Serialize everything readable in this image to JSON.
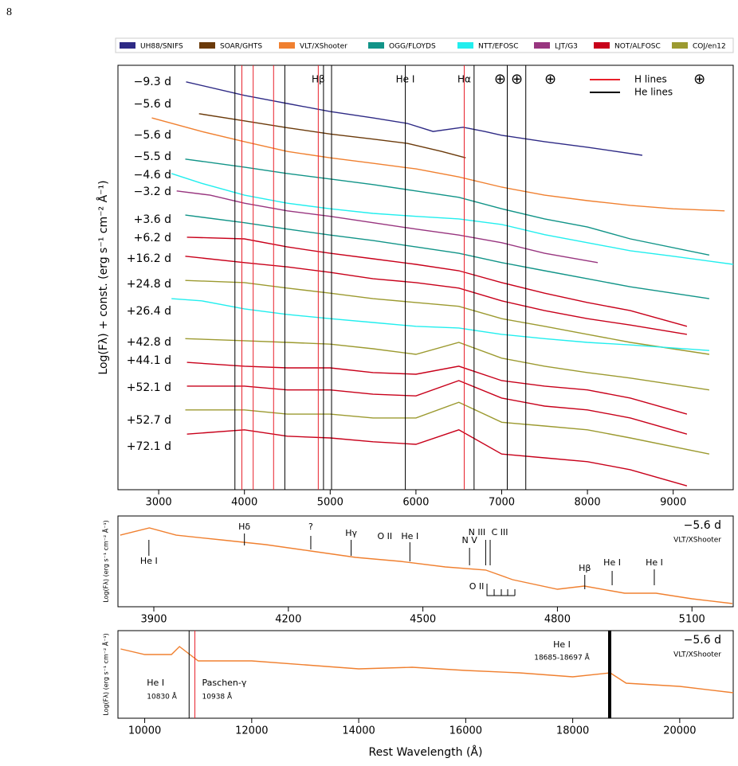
{
  "page_number": "8",
  "chart_data": [
    {
      "type": "line",
      "xlabel_hidden_none": null,
      "ylabel": "Log(Fλ) + const. (erg s⁻¹ cm⁻² Å⁻¹)",
      "xlim": [
        2525,
        9700
      ],
      "xticks": [
        3000,
        4000,
        5000,
        6000,
        7000,
        8000,
        9000
      ],
      "ylim": [
        0,
        100
      ],
      "legend": [
        {
          "name": "UH88/SNIFS",
          "color": "#2e2a85"
        },
        {
          "name": "SOAR/GHTS",
          "color": "#6b3a0a"
        },
        {
          "name": "VLT/XShooter",
          "color": "#f08030"
        },
        {
          "name": "OGG/FLOYDS",
          "color": "#119488"
        },
        {
          "name": "NTT/EFOSC",
          "color": "#22eeee"
        },
        {
          "name": "LJT/G3",
          "color": "#98357f"
        },
        {
          "name": "NOT/ALFOSC",
          "color": "#c8001a"
        },
        {
          "name": "COJ/en12",
          "color": "#9c9a30"
        }
      ],
      "line_legend": [
        {
          "name": "H lines",
          "color": "#e8202a"
        },
        {
          "name": "He lines",
          "color": "#000000"
        }
      ],
      "h_lines": [
        3970,
        4102,
        4340,
        4861,
        6563
      ],
      "he_lines": [
        3889,
        4471,
        4922,
        5016,
        5876,
        6678,
        7065,
        7281
      ],
      "annotations": [
        {
          "text": "Hβ",
          "x": 4861
        },
        {
          "text": "He I",
          "x": 5876
        },
        {
          "text": "Hα",
          "x": 6563
        },
        {
          "text": "⊕",
          "x": 6981
        },
        {
          "text": "⊕",
          "x": 7177
        },
        {
          "text": "⊕",
          "x": 7567
        },
        {
          "text": "⊕",
          "x": 9307
        }
      ],
      "series": [
        {
          "name": "−9.3 d",
          "color": "#2e2a85",
          "x": [
            3320,
            4000,
            4500,
            5000,
            5500,
            5900,
            6200,
            6550,
            6800,
            7000,
            7500,
            8000,
            8640
          ],
          "values": [
            96.1,
            92.9,
            91.0,
            89.1,
            87.6,
            86.3,
            84.4,
            85.4,
            84.4,
            83.5,
            82.0,
            80.7,
            78.8
          ]
        },
        {
          "name": "−5.6 d",
          "color": "#6b3a0a",
          "x": [
            3470,
            4000,
            4500,
            5000,
            5500,
            5900,
            6300,
            6580
          ],
          "values": [
            88.6,
            86.9,
            85.3,
            83.8,
            82.6,
            81.6,
            79.7,
            78.2
          ]
        },
        {
          "name": "−5.6 d",
          "color": "#f08030",
          "x": [
            2920,
            3500,
            4000,
            4500,
            5000,
            5500,
            6000,
            6500,
            7000,
            7500,
            8000,
            8500,
            9000,
            9600
          ],
          "values": [
            87.6,
            84.4,
            82.0,
            79.7,
            78.2,
            76.9,
            75.6,
            73.7,
            71.3,
            69.4,
            68.1,
            67.0,
            66.2,
            65.7
          ]
        },
        {
          "name": "−5.5 d",
          "color": "#119488",
          "x": [
            3310,
            4000,
            4500,
            5000,
            5500,
            6000,
            6500,
            7000,
            7500,
            8000,
            8500,
            9420
          ],
          "values": [
            77.9,
            76.0,
            74.5,
            73.2,
            71.9,
            70.4,
            68.9,
            66.2,
            63.8,
            61.9,
            59.1,
            55.3
          ]
        },
        {
          "name": "−4.6 d",
          "color": "#22eeee",
          "x": [
            3150,
            3500,
            4000,
            4500,
            5000,
            5500,
            6000,
            6500,
            7000,
            7500,
            8000,
            8500,
            9000,
            9700
          ],
          "values": [
            74.5,
            72.2,
            69.4,
            67.5,
            66.2,
            65.1,
            64.4,
            63.8,
            62.5,
            60.1,
            58.2,
            56.3,
            55.0,
            53.1
          ]
        },
        {
          "name": "−3.2 d",
          "color": "#98357f",
          "x": [
            3210,
            3600,
            4000,
            4500,
            5000,
            5500,
            6000,
            6500,
            7000,
            7500,
            8120
          ],
          "values": [
            70.4,
            69.4,
            67.5,
            65.7,
            64.4,
            62.9,
            61.4,
            60.0,
            58.2,
            55.7,
            53.5
          ]
        },
        {
          "name": "+3.6 d",
          "color": "#119488",
          "x": [
            3310,
            4000,
            4500,
            5000,
            5500,
            6000,
            6500,
            7000,
            7500,
            8000,
            8500,
            9420
          ],
          "values": [
            64.7,
            62.9,
            61.4,
            60.0,
            58.7,
            57.2,
            55.7,
            53.5,
            51.6,
            49.7,
            47.8,
            45.0
          ]
        },
        {
          "name": "+6.2 d",
          "color": "#c8001a",
          "x": [
            3330,
            4000,
            4500,
            5000,
            5500,
            6000,
            6500,
            7000,
            7500,
            8000,
            8500,
            9160
          ],
          "values": [
            59.5,
            59.1,
            57.2,
            55.7,
            54.4,
            53.1,
            51.6,
            48.8,
            46.3,
            44.1,
            42.2,
            38.5
          ]
        },
        {
          "name": "+16.2 d",
          "color": "#c8001a",
          "x": [
            3310,
            4000,
            4500,
            5000,
            5500,
            6000,
            6500,
            7000,
            7500,
            8000,
            8500,
            9160
          ],
          "values": [
            55.0,
            53.5,
            52.5,
            51.2,
            49.7,
            48.8,
            47.5,
            44.5,
            42.2,
            40.3,
            38.8,
            36.6
          ]
        },
        {
          "name": "+24.8 d",
          "color": "#9c9a30",
          "x": [
            3310,
            4000,
            4500,
            5000,
            5500,
            6000,
            6500,
            7000,
            7500,
            8000,
            8500,
            9420
          ],
          "values": [
            49.3,
            48.8,
            47.5,
            46.3,
            45.0,
            44.1,
            43.2,
            40.3,
            38.5,
            36.6,
            34.7,
            31.9
          ]
        },
        {
          "name": "+26.4 d",
          "color": "#22eeee",
          "x": [
            3150,
            3500,
            4000,
            4500,
            5000,
            5500,
            6000,
            6500,
            7000,
            7500,
            8000,
            8500,
            9420
          ],
          "values": [
            45.0,
            44.5,
            42.6,
            41.3,
            40.3,
            39.4,
            38.5,
            38.1,
            36.6,
            35.6,
            34.7,
            34.1,
            32.8
          ]
        },
        {
          "name": "+42.8 d",
          "color": "#9c9a30",
          "x": [
            3310,
            4000,
            4500,
            5000,
            5500,
            6000,
            6500,
            7000,
            7500,
            8000,
            8500,
            9420
          ],
          "values": [
            35.6,
            35.1,
            34.7,
            34.3,
            33.2,
            31.9,
            34.7,
            31.0,
            29.1,
            27.6,
            26.3,
            23.5
          ]
        },
        {
          "name": "+44.1 d",
          "color": "#c8001a",
          "x": [
            3330,
            4000,
            4500,
            5000,
            5500,
            6000,
            6500,
            7000,
            7500,
            8000,
            8500,
            9160
          ],
          "values": [
            30.0,
            29.1,
            28.7,
            28.7,
            27.6,
            27.2,
            29.1,
            25.7,
            24.4,
            23.5,
            21.6,
            17.8
          ]
        },
        {
          "name": "+52.1 d",
          "color": "#c8001a",
          "x": [
            3330,
            4000,
            4500,
            5000,
            5500,
            6000,
            6500,
            7000,
            7500,
            8000,
            8500,
            9160
          ],
          "values": [
            24.4,
            24.4,
            23.5,
            23.5,
            22.5,
            22.1,
            25.7,
            21.6,
            19.7,
            18.8,
            16.9,
            13.1
          ]
        },
        {
          "name": "+52.7 d",
          "color": "#9c9a30",
          "x": [
            3310,
            4000,
            4500,
            5000,
            5500,
            6000,
            6500,
            7000,
            7500,
            8000,
            8500,
            9420
          ],
          "values": [
            18.8,
            18.8,
            17.8,
            17.8,
            16.9,
            16.9,
            20.6,
            15.9,
            15.0,
            14.1,
            12.2,
            8.4
          ]
        },
        {
          "name": "+72.1 d",
          "color": "#c8001a",
          "x": [
            3330,
            4000,
            4500,
            5000,
            5500,
            6000,
            6500,
            7000,
            7500,
            8000,
            8500,
            9160
          ],
          "values": [
            13.1,
            14.1,
            12.6,
            12.2,
            11.3,
            10.7,
            14.1,
            8.4,
            7.5,
            6.6,
            4.7,
            0.9
          ]
        }
      ]
    },
    {
      "type": "line",
      "ylabel": "Log(Fλ) (erg s⁻¹ cm⁻² Å⁻¹)",
      "xlim": [
        3820,
        5192
      ],
      "xticks": [
        3900,
        4200,
        4500,
        4800,
        5100
      ],
      "ylim": [
        0,
        100
      ],
      "annotations": [
        {
          "text": "He I",
          "x": 3889
        },
        {
          "text": "Hδ",
          "x": 4102
        },
        {
          "text": "?",
          "x": 4250
        },
        {
          "text": "Hγ",
          "x": 4340
        },
        {
          "text": "O II",
          "x": 4415
        },
        {
          "text": "He I",
          "x": 4471
        },
        {
          "text": "N V",
          "x": 4604
        },
        {
          "text": "N III",
          "x": 4640
        },
        {
          "text": "C III",
          "x": 4650
        },
        {
          "text": "O II",
          "x": 4650
        },
        {
          "text": "Hβ",
          "x": 4861
        },
        {
          "text": "He I",
          "x": 4922
        },
        {
          "text": "He I",
          "x": 5016
        }
      ],
      "series": [
        {
          "name": "−5.6 d",
          "instrument": "VLT/XShooter",
          "color": "#f08030",
          "x": [
            3825,
            3890,
            3950,
            4050,
            4150,
            4250,
            4350,
            4450,
            4550,
            4640,
            4700,
            4800,
            4860,
            4950,
            5020,
            5100,
            5190
          ],
          "values": [
            78.9,
            86.8,
            78.9,
            73.7,
            68.4,
            61.4,
            54.4,
            50.0,
            43.9,
            40.4,
            29.8,
            19.3,
            22.8,
            14.9,
            14.9,
            8.8,
            3.5
          ]
        }
      ]
    },
    {
      "type": "line",
      "xlabel": "Rest Wavelength (Å)",
      "ylabel": "Log(Fλ) (erg s⁻¹ cm⁻² Å⁻¹)",
      "xlim": [
        9500,
        21000
      ],
      "xticks": [
        10000,
        12000,
        14000,
        16000,
        18000,
        20000
      ],
      "ylim": [
        0,
        100
      ],
      "annotations": [
        {
          "text": "He I",
          "subtext": "10830 Å",
          "x": 10830,
          "color": "#000000"
        },
        {
          "text": "Paschen-γ",
          "subtext": "10938 Å",
          "x": 10938,
          "color": "#e8202a"
        },
        {
          "text": "He I",
          "subtext": "18685-18697 Å",
          "x": 18691,
          "color": "#000000"
        }
      ],
      "series": [
        {
          "name": "−5.6 d",
          "instrument": "VLT/XShooter",
          "color": "#f08030",
          "x": [
            9550,
            10000,
            10500,
            10650,
            11000,
            12000,
            13000,
            14000,
            15000,
            16000,
            17000,
            18000,
            18700,
            19000,
            20000,
            21000
          ],
          "values": [
            79.1,
            72.7,
            72.7,
            81.8,
            65.5,
            65.5,
            60.9,
            56.4,
            58.2,
            54.5,
            51.8,
            47.3,
            51.8,
            40.0,
            36.4,
            29.1
          ]
        }
      ]
    }
  ]
}
